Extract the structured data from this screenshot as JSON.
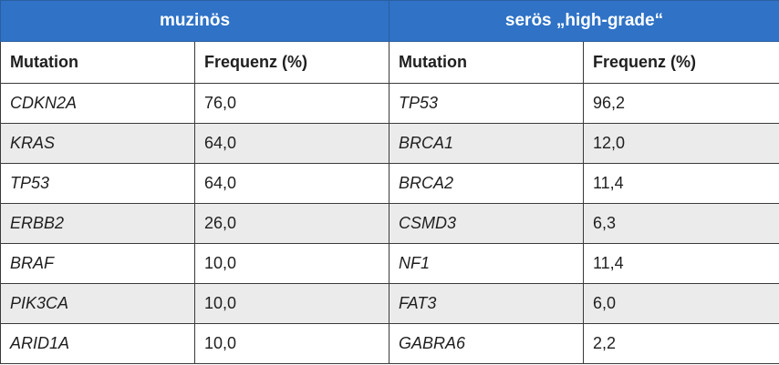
{
  "groups": {
    "left": "muzinös",
    "right": "serös „high-grade“"
  },
  "columns": {
    "mutation": "Mutation",
    "frequency": "Frequenz (%)"
  },
  "rows": [
    {
      "left_gene": "CDKN2A",
      "left_freq": "76,0",
      "right_gene": "TP53",
      "right_freq": "96,2"
    },
    {
      "left_gene": "KRAS",
      "left_freq": "64,0",
      "right_gene": "BRCA1",
      "right_freq": "12,0"
    },
    {
      "left_gene": "TP53",
      "left_freq": "64,0",
      "right_gene": "BRCA2",
      "right_freq": "11,4"
    },
    {
      "left_gene": "ERBB2",
      "left_freq": "26,0",
      "right_gene": "CSMD3",
      "right_freq": "6,3"
    },
    {
      "left_gene": "BRAF",
      "left_freq": "10,0",
      "right_gene": "NF1",
      "right_freq": "11,4"
    },
    {
      "left_gene": "PIK3CA",
      "left_freq": "10,0",
      "right_gene": "FAT3",
      "right_freq": "6,0"
    },
    {
      "left_gene": "ARID1A",
      "left_freq": "10,0",
      "right_gene": "GABRA6",
      "right_freq": "2,2"
    }
  ]
}
